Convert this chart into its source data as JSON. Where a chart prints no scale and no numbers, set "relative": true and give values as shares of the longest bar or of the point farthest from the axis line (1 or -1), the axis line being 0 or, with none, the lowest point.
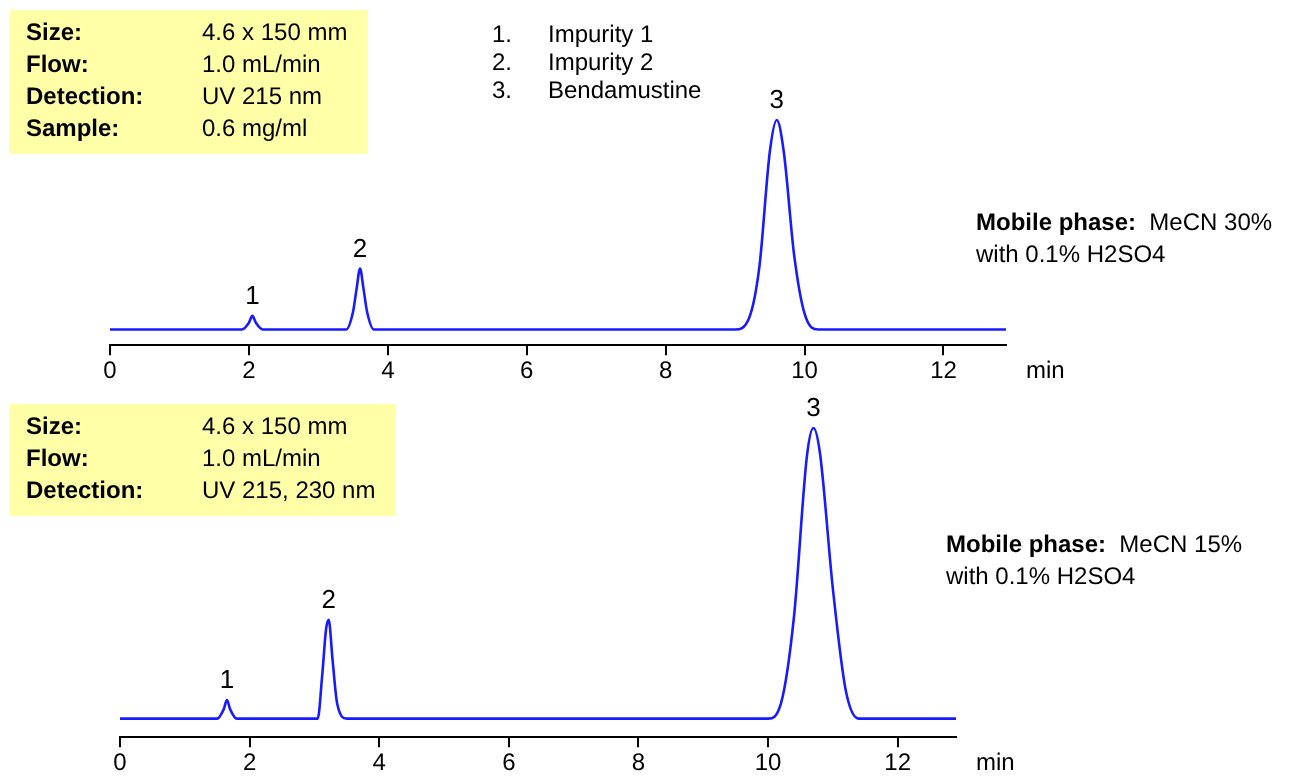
{
  "chart_data": [
    {
      "type": "line",
      "xlabel": "min",
      "relative": true,
      "xlim": [
        0,
        12.9
      ],
      "xticks": [
        0,
        2,
        4,
        6,
        8,
        10,
        12
      ],
      "grid": false,
      "legend": false,
      "marker": "none",
      "line_style": "solid",
      "x": [
        0,
        1.9,
        2.0,
        2.05,
        2.1,
        2.2,
        3.4,
        3.5,
        3.55,
        3.6,
        3.65,
        3.7,
        3.8,
        9.0,
        9.2,
        9.35,
        9.5,
        9.6,
        9.7,
        9.85,
        10.0,
        10.2,
        12.9
      ],
      "series": [
        {
          "color": "#1a1aff",
          "values": [
            0.07,
            0.07,
            0.1,
            0.13,
            0.1,
            0.07,
            0.07,
            0.15,
            0.25,
            0.34,
            0.25,
            0.15,
            0.07,
            0.07,
            0.12,
            0.35,
            0.86,
            1,
            0.86,
            0.4,
            0.14,
            0.07,
            0.07
          ]
        }
      ],
      "annotations": [
        "Size: 4.6 x 150 mm",
        "Flow: 1.0 mL/min",
        "Detection: UV 215 nm",
        "Sample: 0.6 mg/ml",
        "1. Impurity 1",
        "2. Impurity 2",
        "3. Bendamustine",
        "Mobile phase: MeCN 30% with 0.1% H2SO4",
        {
          "text": "1",
          "x": 2.05,
          "y": 0.13
        },
        {
          "text": "2",
          "x": 3.6,
          "y": 0.34
        },
        {
          "text": "3",
          "x": 9.6,
          "y": 1
        }
      ]
    },
    {
      "type": "line",
      "xlabel": "min",
      "relative": true,
      "xlim": [
        0,
        12.9
      ],
      "xticks": [
        0,
        2,
        4,
        6,
        8,
        10,
        12
      ],
      "grid": false,
      "legend": false,
      "marker": "none",
      "line_style": "solid",
      "x": [
        0,
        1.5,
        1.6,
        1.65,
        1.7,
        1.8,
        3.05,
        3.12,
        3.18,
        3.22,
        3.28,
        3.35,
        3.5,
        10.0,
        10.2,
        10.4,
        10.6,
        10.7,
        10.8,
        11.0,
        11.2,
        11.4,
        12.9
      ],
      "series": [
        {
          "color": "#1a1aff",
          "values": [
            0.06,
            0.06,
            0.09,
            0.12,
            0.09,
            0.06,
            0.06,
            0.2,
            0.35,
            0.38,
            0.25,
            0.11,
            0.06,
            0.06,
            0.11,
            0.39,
            0.91,
            1,
            0.92,
            0.48,
            0.15,
            0.06,
            0.06
          ]
        }
      ],
      "annotations": [
        "Size: 4.6 x 150 mm",
        "Flow: 1.0 mL/min",
        "Detection: UV 215, 230 nm",
        "Mobile phase: MeCN 15% with 0.1% H2SO4",
        {
          "text": "1",
          "x": 1.65,
          "y": 0.12
        },
        {
          "text": "2",
          "x": 3.22,
          "y": 0.38
        },
        {
          "text": "3",
          "x": 10.7,
          "y": 1
        }
      ]
    }
  ]
}
